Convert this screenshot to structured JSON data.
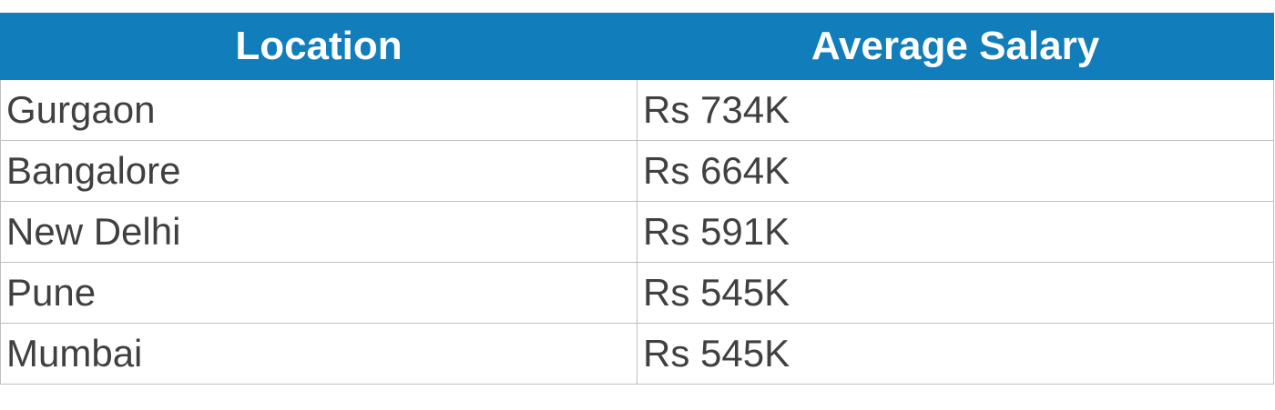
{
  "table": {
    "headers": {
      "location": "Location",
      "salary": "Average Salary"
    },
    "rows": [
      {
        "location": "Gurgaon",
        "salary": "Rs 734K"
      },
      {
        "location": "Bangalore",
        "salary": "Rs 664K"
      },
      {
        "location": "New Delhi",
        "salary": "Rs 591K"
      },
      {
        "location": "Pune",
        "salary": "Rs 545K"
      },
      {
        "location": "Mumbai",
        "salary": "Rs 545K"
      }
    ],
    "colors": {
      "header_background": "#117dbb",
      "header_text": "#ffffff",
      "cell_text": "#404040",
      "grid_line": "#bfbfbf"
    }
  }
}
